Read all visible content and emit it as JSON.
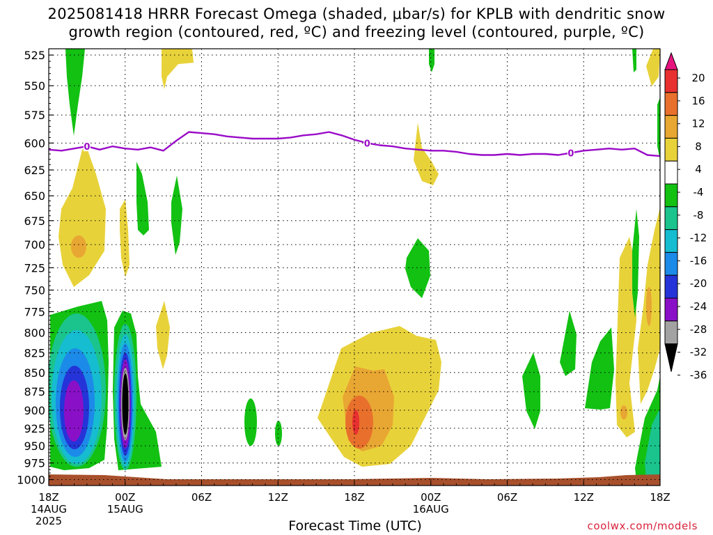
{
  "header": {
    "title_line1": "2025081418 HRRR Forecast Omega (shaded, μbar/s) for KPLB with dendritic snow",
    "title_line2": "growth region (contoured, red, ºC) and freezing level (contoured, purple, ºC)"
  },
  "footer": {
    "xaxis_title": "Forecast Time (UTC)",
    "credit": "coolwx.com/models"
  },
  "chart_data": {
    "type": "heatmap",
    "title": "2025081418 HRRR Forecast Omega (shaded, μbar/s) for KPLB with dendritic snow growth region (contoured, red, ºC) and freezing level (contoured, purple, ºC)",
    "xlabel": "Forecast Time (UTC)",
    "ylabel": "",
    "x_range_hours": [
      0,
      48
    ],
    "y_range_hPa": [
      1000,
      525
    ],
    "y_scale": "log-pressure",
    "grid": true,
    "y_ticks": [
      "525",
      "550",
      "575",
      "600",
      "625",
      "650",
      "675",
      "700",
      "725",
      "750",
      "775",
      "800",
      "825",
      "850",
      "875",
      "900",
      "925",
      "950",
      "975",
      "1000"
    ],
    "x_ticks": [
      {
        "hour": 0,
        "label": "18Z",
        "sub": "14AUG",
        "sub2": "2025"
      },
      {
        "hour": 6,
        "label": "00Z",
        "sub": "15AUG",
        "sub2": ""
      },
      {
        "hour": 12,
        "label": "06Z",
        "sub": "",
        "sub2": ""
      },
      {
        "hour": 18,
        "label": "12Z",
        "sub": "",
        "sub2": ""
      },
      {
        "hour": 24,
        "label": "18Z",
        "sub": "",
        "sub2": ""
      },
      {
        "hour": 30,
        "label": "00Z",
        "sub": "16AUG",
        "sub2": ""
      },
      {
        "hour": 36,
        "label": "06Z",
        "sub": "",
        "sub2": ""
      },
      {
        "hour": 42,
        "label": "12Z",
        "sub": "",
        "sub2": ""
      },
      {
        "hour": 48,
        "label": "18Z",
        "sub": "",
        "sub2": ""
      }
    ],
    "colorbar": {
      "labels": [
        "20",
        "16",
        "12",
        "8",
        "4",
        "-4",
        "-8",
        "-12",
        "-16",
        "-20",
        "-24",
        "-28",
        "-32",
        "-36"
      ],
      "colors": [
        "#e6147e",
        "#e83030",
        "#e8702c",
        "#e8a632",
        "#e8d23a",
        "#ffffff",
        "#12c112",
        "#1ac48c",
        "#16bcd0",
        "#1c8ae8",
        "#2534d8",
        "#8a10c8",
        "#a2a2a2",
        "#000000"
      ]
    },
    "freezing_level": {
      "label": "0",
      "color": "#9a0ac8",
      "hours": [
        0,
        1,
        2,
        3,
        4,
        5,
        6,
        7,
        8,
        9,
        10,
        11,
        12,
        13,
        14,
        15,
        16,
        17,
        18,
        19,
        20,
        21,
        22,
        23,
        24,
        25,
        26,
        27,
        28,
        29,
        30,
        31,
        32,
        33,
        34,
        35,
        36,
        37,
        38,
        39,
        40,
        41,
        42,
        43,
        44,
        45,
        46,
        47,
        48
      ],
      "pressure": [
        606,
        607,
        605,
        603,
        606,
        603,
        605,
        606,
        604,
        607,
        598,
        590,
        591,
        592,
        594,
        595,
        596,
        596,
        596,
        595,
        593,
        592,
        590,
        593,
        597,
        600,
        602,
        603,
        605,
        606,
        607,
        607,
        608,
        610,
        611,
        611,
        610,
        611,
        610,
        610,
        611,
        609,
        607,
        606,
        605,
        606,
        605,
        611,
        612
      ]
    },
    "omega_regions": [
      {
        "name": "ascent-core-14aug",
        "hour": 1.8,
        "p": 910,
        "min_value": -30
      },
      {
        "name": "ascent-core-00z",
        "hour": 6.0,
        "p": 905,
        "min_value": -40
      },
      {
        "name": "descent-18z-15aug",
        "hour": 24.0,
        "p": 930,
        "max_value": 16
      },
      {
        "name": "descent-700",
        "hour": 2.5,
        "p": 700,
        "max_value": 9
      }
    ]
  }
}
